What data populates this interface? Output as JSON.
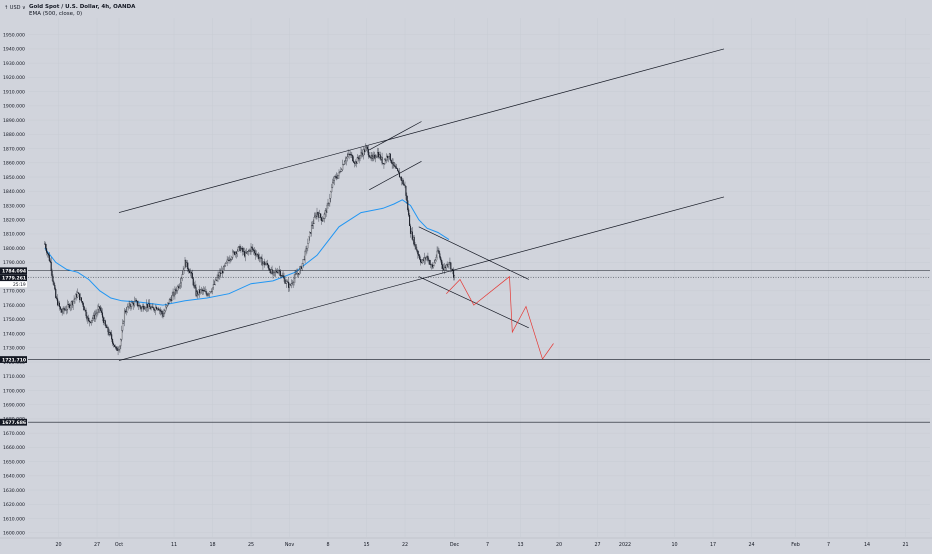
{
  "header": {
    "title": "Gold Spot / U.S. Dollar, 4h, OANDA",
    "indicator": "EMA (500, close, 0)"
  },
  "currency_label": "↑ USD ∨",
  "colors": {
    "background": "#d1d4dc",
    "text": "#131722",
    "candle": "#131722",
    "ema": "#2196f3",
    "drawing": "#131722",
    "projection": "#e53935",
    "price_tag_bg": "#131722",
    "price_tag_text": "#ffffff",
    "countdown_bg": "#ffffff"
  },
  "chart_data": {
    "type": "candlestick",
    "title": "Gold Spot / U.S. Dollar, 4h, OANDA",
    "indicator": "EMA (500, close, 0)",
    "ylim": [
      1598,
      1957
    ],
    "y_ticks": [
      "1950.000",
      "1940.000",
      "1930.000",
      "1920.000",
      "1910.000",
      "1900.000",
      "1890.000",
      "1880.000",
      "1870.000",
      "1860.000",
      "1850.000",
      "1840.000",
      "1830.000",
      "1820.000",
      "1810.000",
      "1800.000",
      "1790.000",
      "1780.000",
      "1770.000",
      "1760.000",
      "1750.000",
      "1740.000",
      "1730.000",
      "1720.000",
      "1710.000",
      "1700.000",
      "1690.000",
      "1680.000",
      "1670.000",
      "1660.000",
      "1650.000",
      "1640.000",
      "1630.000",
      "1620.000",
      "1610.000",
      "1600.000"
    ],
    "x_ticks": [
      {
        "label": "20",
        "day": -11
      },
      {
        "label": "27",
        "day": -4
      },
      {
        "label": "Oct",
        "day": 0
      },
      {
        "label": "11",
        "day": 10
      },
      {
        "label": "18",
        "day": 17
      },
      {
        "label": "25",
        "day": 24
      },
      {
        "label": "Nov",
        "day": 31
      },
      {
        "label": "8",
        "day": 38
      },
      {
        "label": "15",
        "day": 45
      },
      {
        "label": "22",
        "day": 52
      },
      {
        "label": "Dec",
        "day": 61
      },
      {
        "label": "7",
        "day": 67
      },
      {
        "label": "13",
        "day": 73
      },
      {
        "label": "20",
        "day": 80
      },
      {
        "label": "27",
        "day": 87
      },
      {
        "label": "2022",
        "day": 92
      },
      {
        "label": "10",
        "day": 101
      },
      {
        "label": "17",
        "day": 108
      },
      {
        "label": "24",
        "day": 115
      },
      {
        "label": "Feb",
        "day": 123
      },
      {
        "label": "7",
        "day": 129
      },
      {
        "label": "14",
        "day": 136
      },
      {
        "label": "21",
        "day": 143
      }
    ],
    "price_path": [
      [
        -13.5,
        1803
      ],
      [
        -12.5,
        1790
      ],
      [
        -11.5,
        1765
      ],
      [
        -10.5,
        1755
      ],
      [
        -9.5,
        1758
      ],
      [
        -8.5,
        1762
      ],
      [
        -7.5,
        1768
      ],
      [
        -6.5,
        1760
      ],
      [
        -5.5,
        1748
      ],
      [
        -4.5,
        1752
      ],
      [
        -3.5,
        1758
      ],
      [
        -2.5,
        1745
      ],
      [
        -1.5,
        1738
      ],
      [
        -0.5,
        1728
      ],
      [
        0.2,
        1732
      ],
      [
        1.0,
        1755
      ],
      [
        2.0,
        1760
      ],
      [
        3.0,
        1762
      ],
      [
        4.0,
        1758
      ],
      [
        5.0,
        1760
      ],
      [
        6.0,
        1757
      ],
      [
        7.0,
        1759
      ],
      [
        8.0,
        1753
      ],
      [
        9.0,
        1762
      ],
      [
        10.0,
        1768
      ],
      [
        11.0,
        1775
      ],
      [
        12.0,
        1790
      ],
      [
        13.0,
        1783
      ],
      [
        14.0,
        1768
      ],
      [
        15.0,
        1770
      ],
      [
        16.0,
        1768
      ],
      [
        17.0,
        1772
      ],
      [
        18.0,
        1780
      ],
      [
        19.0,
        1785
      ],
      [
        20.0,
        1793
      ],
      [
        21.0,
        1797
      ],
      [
        22.0,
        1800
      ],
      [
        23.0,
        1795
      ],
      [
        24.0,
        1800
      ],
      [
        25.0,
        1796
      ],
      [
        26.0,
        1790
      ],
      [
        27.0,
        1788
      ],
      [
        28.0,
        1781
      ],
      [
        29.0,
        1785
      ],
      [
        30.0,
        1778
      ],
      [
        31.0,
        1773
      ],
      [
        32.0,
        1780
      ],
      [
        33.0,
        1785
      ],
      [
        34.0,
        1798
      ],
      [
        35.0,
        1815
      ],
      [
        36.0,
        1825
      ],
      [
        37.0,
        1820
      ],
      [
        38.0,
        1830
      ],
      [
        39.0,
        1848
      ],
      [
        40.0,
        1852
      ],
      [
        41.0,
        1862
      ],
      [
        42.0,
        1866
      ],
      [
        43.0,
        1860
      ],
      [
        44.0,
        1866
      ],
      [
        45.0,
        1870
      ],
      [
        46.0,
        1862
      ],
      [
        47.0,
        1867
      ],
      [
        48.0,
        1860
      ],
      [
        49.0,
        1866
      ],
      [
        50.0,
        1857
      ],
      [
        51.0,
        1851
      ],
      [
        52.0,
        1843
      ],
      [
        53.0,
        1812
      ],
      [
        54.0,
        1800
      ],
      [
        55.0,
        1790
      ],
      [
        56.0,
        1794
      ],
      [
        57.0,
        1786
      ],
      [
        58.0,
        1798
      ],
      [
        59.0,
        1785
      ],
      [
        60.0,
        1791
      ],
      [
        61.0,
        1779
      ]
    ],
    "ema_path": [
      [
        -13.5,
        1800
      ],
      [
        -11.5,
        1790
      ],
      [
        -9.5,
        1785
      ],
      [
        -7.5,
        1783
      ],
      [
        -5.5,
        1778
      ],
      [
        -3.5,
        1770
      ],
      [
        -1.5,
        1765
      ],
      [
        0.5,
        1763
      ],
      [
        4.0,
        1762
      ],
      [
        8.0,
        1760
      ],
      [
        12.0,
        1763
      ],
      [
        16.0,
        1765
      ],
      [
        20.0,
        1768
      ],
      [
        24.0,
        1775
      ],
      [
        28.0,
        1777
      ],
      [
        32.0,
        1783
      ],
      [
        36.0,
        1795
      ],
      [
        40.0,
        1815
      ],
      [
        44.0,
        1825
      ],
      [
        48.0,
        1828
      ],
      [
        50.0,
        1831
      ],
      [
        51.5,
        1834
      ],
      [
        53.0,
        1830
      ],
      [
        54.5,
        1820
      ],
      [
        56.0,
        1814
      ],
      [
        58.0,
        1811
      ],
      [
        60.0,
        1806
      ]
    ],
    "drawings": [
      {
        "type": "trend_line",
        "points": [
          [
            0,
            1825
          ],
          [
            110,
            1940
          ]
        ]
      },
      {
        "type": "trend_line",
        "points": [
          [
            0,
            1721
          ],
          [
            110,
            1836
          ]
        ]
      },
      {
        "type": "trend_line",
        "points": [
          [
            45.5,
            1869
          ],
          [
            55,
            1889
          ]
        ]
      },
      {
        "type": "trend_line",
        "points": [
          [
            45.5,
            1841
          ],
          [
            55,
            1861
          ]
        ]
      },
      {
        "type": "trend_line",
        "points": [
          [
            54.5,
            1815
          ],
          [
            74.5,
            1778
          ]
        ]
      },
      {
        "type": "trend_line",
        "points": [
          [
            54.5,
            1780
          ],
          [
            74.5,
            1744
          ]
        ]
      },
      {
        "type": "horizontal_line",
        "price": 1784.094
      },
      {
        "type": "horizontal_line",
        "price": 1721.71
      },
      {
        "type": "horizontal_line",
        "price": 1677.686
      },
      {
        "type": "horizontal_line",
        "price": 1779.261,
        "style": "dotted"
      }
    ],
    "projection": [
      [
        59.5,
        1768
      ],
      [
        62.0,
        1778
      ],
      [
        64.5,
        1760
      ],
      [
        71.0,
        1780
      ],
      [
        71.5,
        1741
      ],
      [
        74.0,
        1759
      ],
      [
        77.0,
        1722
      ],
      [
        79.0,
        1733
      ]
    ],
    "price_labels": [
      {
        "price": 1784.094,
        "label": "1784.094",
        "style": "tag"
      },
      {
        "price": 1779.261,
        "label": "1779.261",
        "style": "tag",
        "countdown": "25:19"
      },
      {
        "price": 1721.71,
        "label": "1721.710",
        "style": "tag"
      },
      {
        "price": 1677.686,
        "label": "1677.686",
        "style": "tag"
      }
    ]
  }
}
